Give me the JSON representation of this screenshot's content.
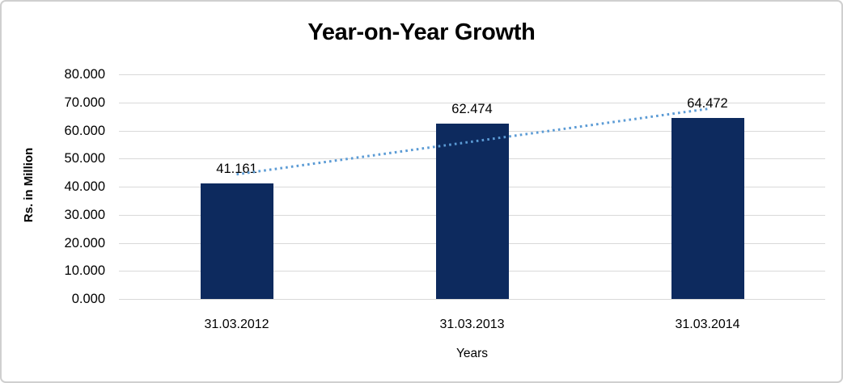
{
  "chart_data": {
    "type": "bar",
    "title": "Year-on-Year Growth",
    "categories": [
      "31.03.2012",
      "31.03.2013",
      "31.03.2014"
    ],
    "values": [
      41.161,
      62.474,
      64.472
    ],
    "data_labels": [
      "41.161",
      "62.474",
      "64.472"
    ],
    "xlabel": "Years",
    "ylabel": "Rs. in Million",
    "ylim": [
      0,
      80
    ],
    "y_tick_step": 10,
    "y_tick_labels": [
      "0.000",
      "10.000",
      "20.000",
      "30.000",
      "40.000",
      "50.000",
      "60.000",
      "70.000",
      "80.000"
    ],
    "grid": true,
    "legend": false,
    "trendline": {
      "type": "linear",
      "style": "dotted"
    }
  },
  "colors": {
    "bar": "#0d2a5e",
    "trendline": "#5b9bd5",
    "gridline": "#d9d9d9",
    "text": "#000000",
    "frame_border": "#cfcfcf",
    "background": "#ffffff"
  }
}
